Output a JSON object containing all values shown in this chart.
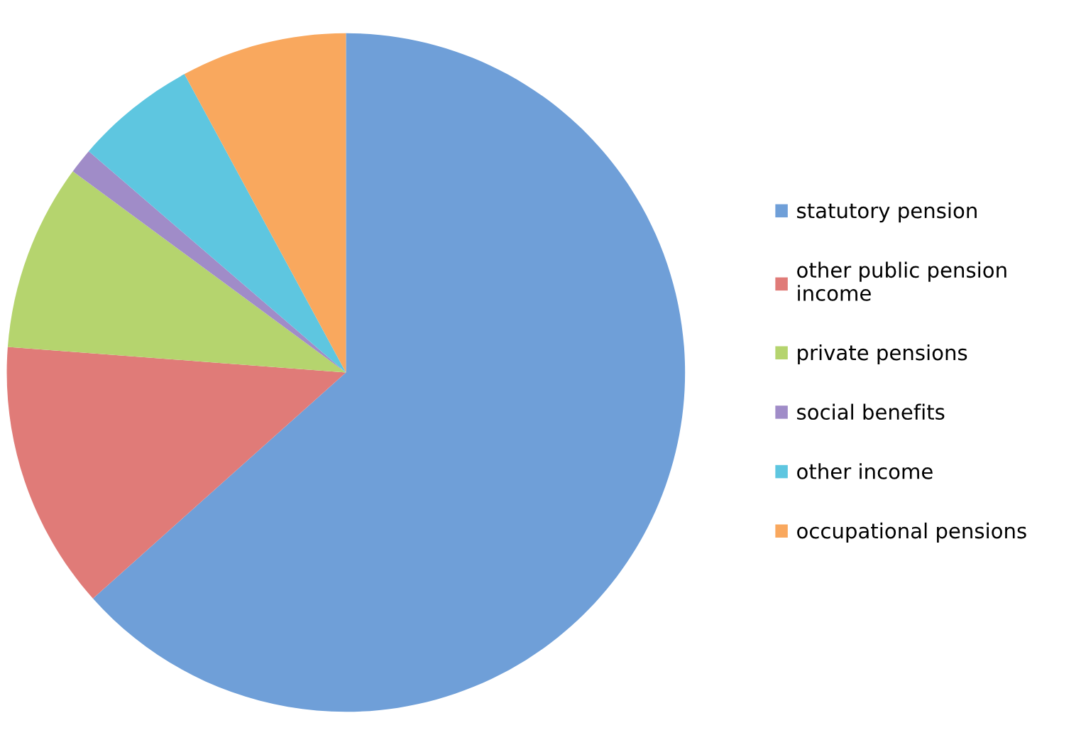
{
  "chart_data": {
    "type": "pie",
    "categories": [
      "statutory pension",
      "other public pension\nincome",
      "private pensions",
      "social benefits",
      "other income",
      "occupational pensions"
    ],
    "values": [
      63.4,
      12.8,
      8.9,
      1.2,
      5.8,
      7.9
    ],
    "colors": [
      "#6f9fd8",
      "#e07b78",
      "#b5d46e",
      "#a08cc8",
      "#5ec6e0",
      "#f9a85e"
    ],
    "legend": "right"
  }
}
